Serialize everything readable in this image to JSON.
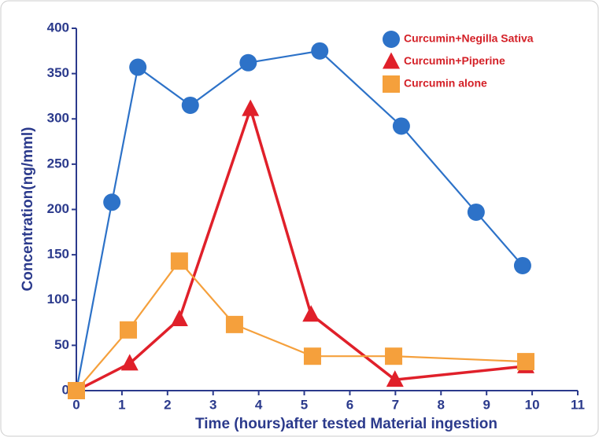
{
  "chart_data": {
    "type": "line",
    "x_label": "Time (hours)after tested Material ingestion",
    "y_label": "Concentration(ng/mml)",
    "xlim": [
      0,
      11
    ],
    "xticks": [
      0,
      1,
      2,
      3,
      4,
      5,
      6,
      7,
      8,
      9,
      10,
      11
    ],
    "ylim": [
      0,
      400
    ],
    "yticks": [
      0,
      50,
      100,
      150,
      200,
      250,
      300,
      350,
      400
    ],
    "legend": "upper right",
    "legend_text_color": "#d42027",
    "axis_color": "#2b3a8c",
    "series": [
      {
        "name": "Curcumin+Negilla Sativa",
        "color": "#2d72c8",
        "marker": "circle",
        "x": [
          0,
          0.78,
          1.35,
          2.5,
          3.77,
          5.34,
          7.13,
          8.77,
          9.79
        ],
        "values": [
          0,
          208,
          357,
          315,
          362,
          375,
          292,
          197,
          138
        ]
      },
      {
        "name": "Curcumin+Piperine",
        "color": "#e0202a",
        "marker": "triangle",
        "x": [
          0,
          1.17,
          2.26,
          3.82,
          5.15,
          6.99,
          9.86
        ],
        "values": [
          0,
          30,
          79,
          311,
          84,
          12,
          27
        ]
      },
      {
        "name": "Curcumin alone",
        "color": "#f5a03c",
        "marker": "square",
        "x": [
          0,
          1.14,
          2.26,
          3.47,
          5.18,
          6.96,
          9.86
        ],
        "values": [
          0,
          67,
          143,
          73,
          38,
          38,
          32
        ]
      }
    ]
  }
}
